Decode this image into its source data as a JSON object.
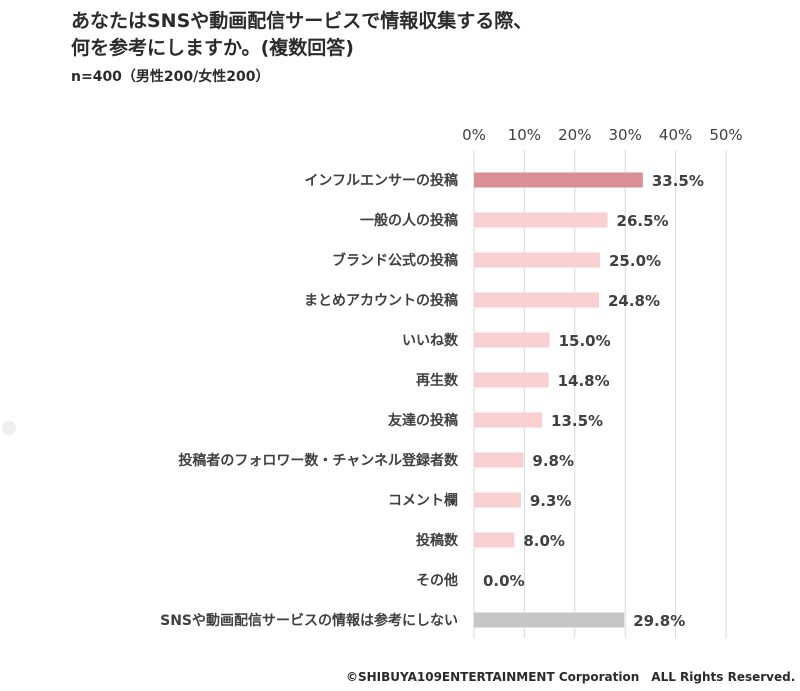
{
  "title_lines": [
    "あなたはSNSや動画配信サービスで情報収集する際、",
    "何を参考にしますか。(複数回答)"
  ],
  "subtitle": "n=400（男性200/女性200）",
  "copyright": "©SHIBUYA109ENTERTAINMENT Corporation　ALL Rights Reserved.",
  "colors": {
    "highlight_bar": "#d98f95",
    "normal_bar": "#f9cfd2",
    "gray_bar": "#c6c6c6",
    "gridline": "#d9d9d9",
    "text": "#404040"
  },
  "chart_data": {
    "type": "bar",
    "orientation": "horizontal",
    "xlim": [
      0,
      50
    ],
    "xticks": [
      "0%",
      "10%",
      "20%",
      "30%",
      "40%",
      "50%"
    ],
    "grid": true,
    "categories": [
      "インフルエンサーの投稿",
      "一般の人の投稿",
      "ブランド公式の投稿",
      "まとめアカウントの投稿",
      "いいね数",
      "再生数",
      "友達の投稿",
      "投稿者のフォロワー数・チャンネル登録者数",
      "コメント欄",
      "投稿数",
      "その他",
      "SNSや動画配信サービスの情報は参考にしない"
    ],
    "values": [
      33.5,
      26.5,
      25.0,
      24.8,
      15.0,
      14.8,
      13.5,
      9.8,
      9.3,
      8.0,
      0.0,
      29.8
    ],
    "value_labels": [
      "33.5%",
      "26.5%",
      "25.0%",
      "24.8%",
      "15.0%",
      "14.8%",
      "13.5%",
      "9.8%",
      "9.3%",
      "8.0%",
      "0.0%",
      "29.8%"
    ],
    "bar_styles": [
      "highlight",
      "normal",
      "normal",
      "normal",
      "normal",
      "normal",
      "normal",
      "normal",
      "normal",
      "normal",
      "normal",
      "gray"
    ]
  }
}
